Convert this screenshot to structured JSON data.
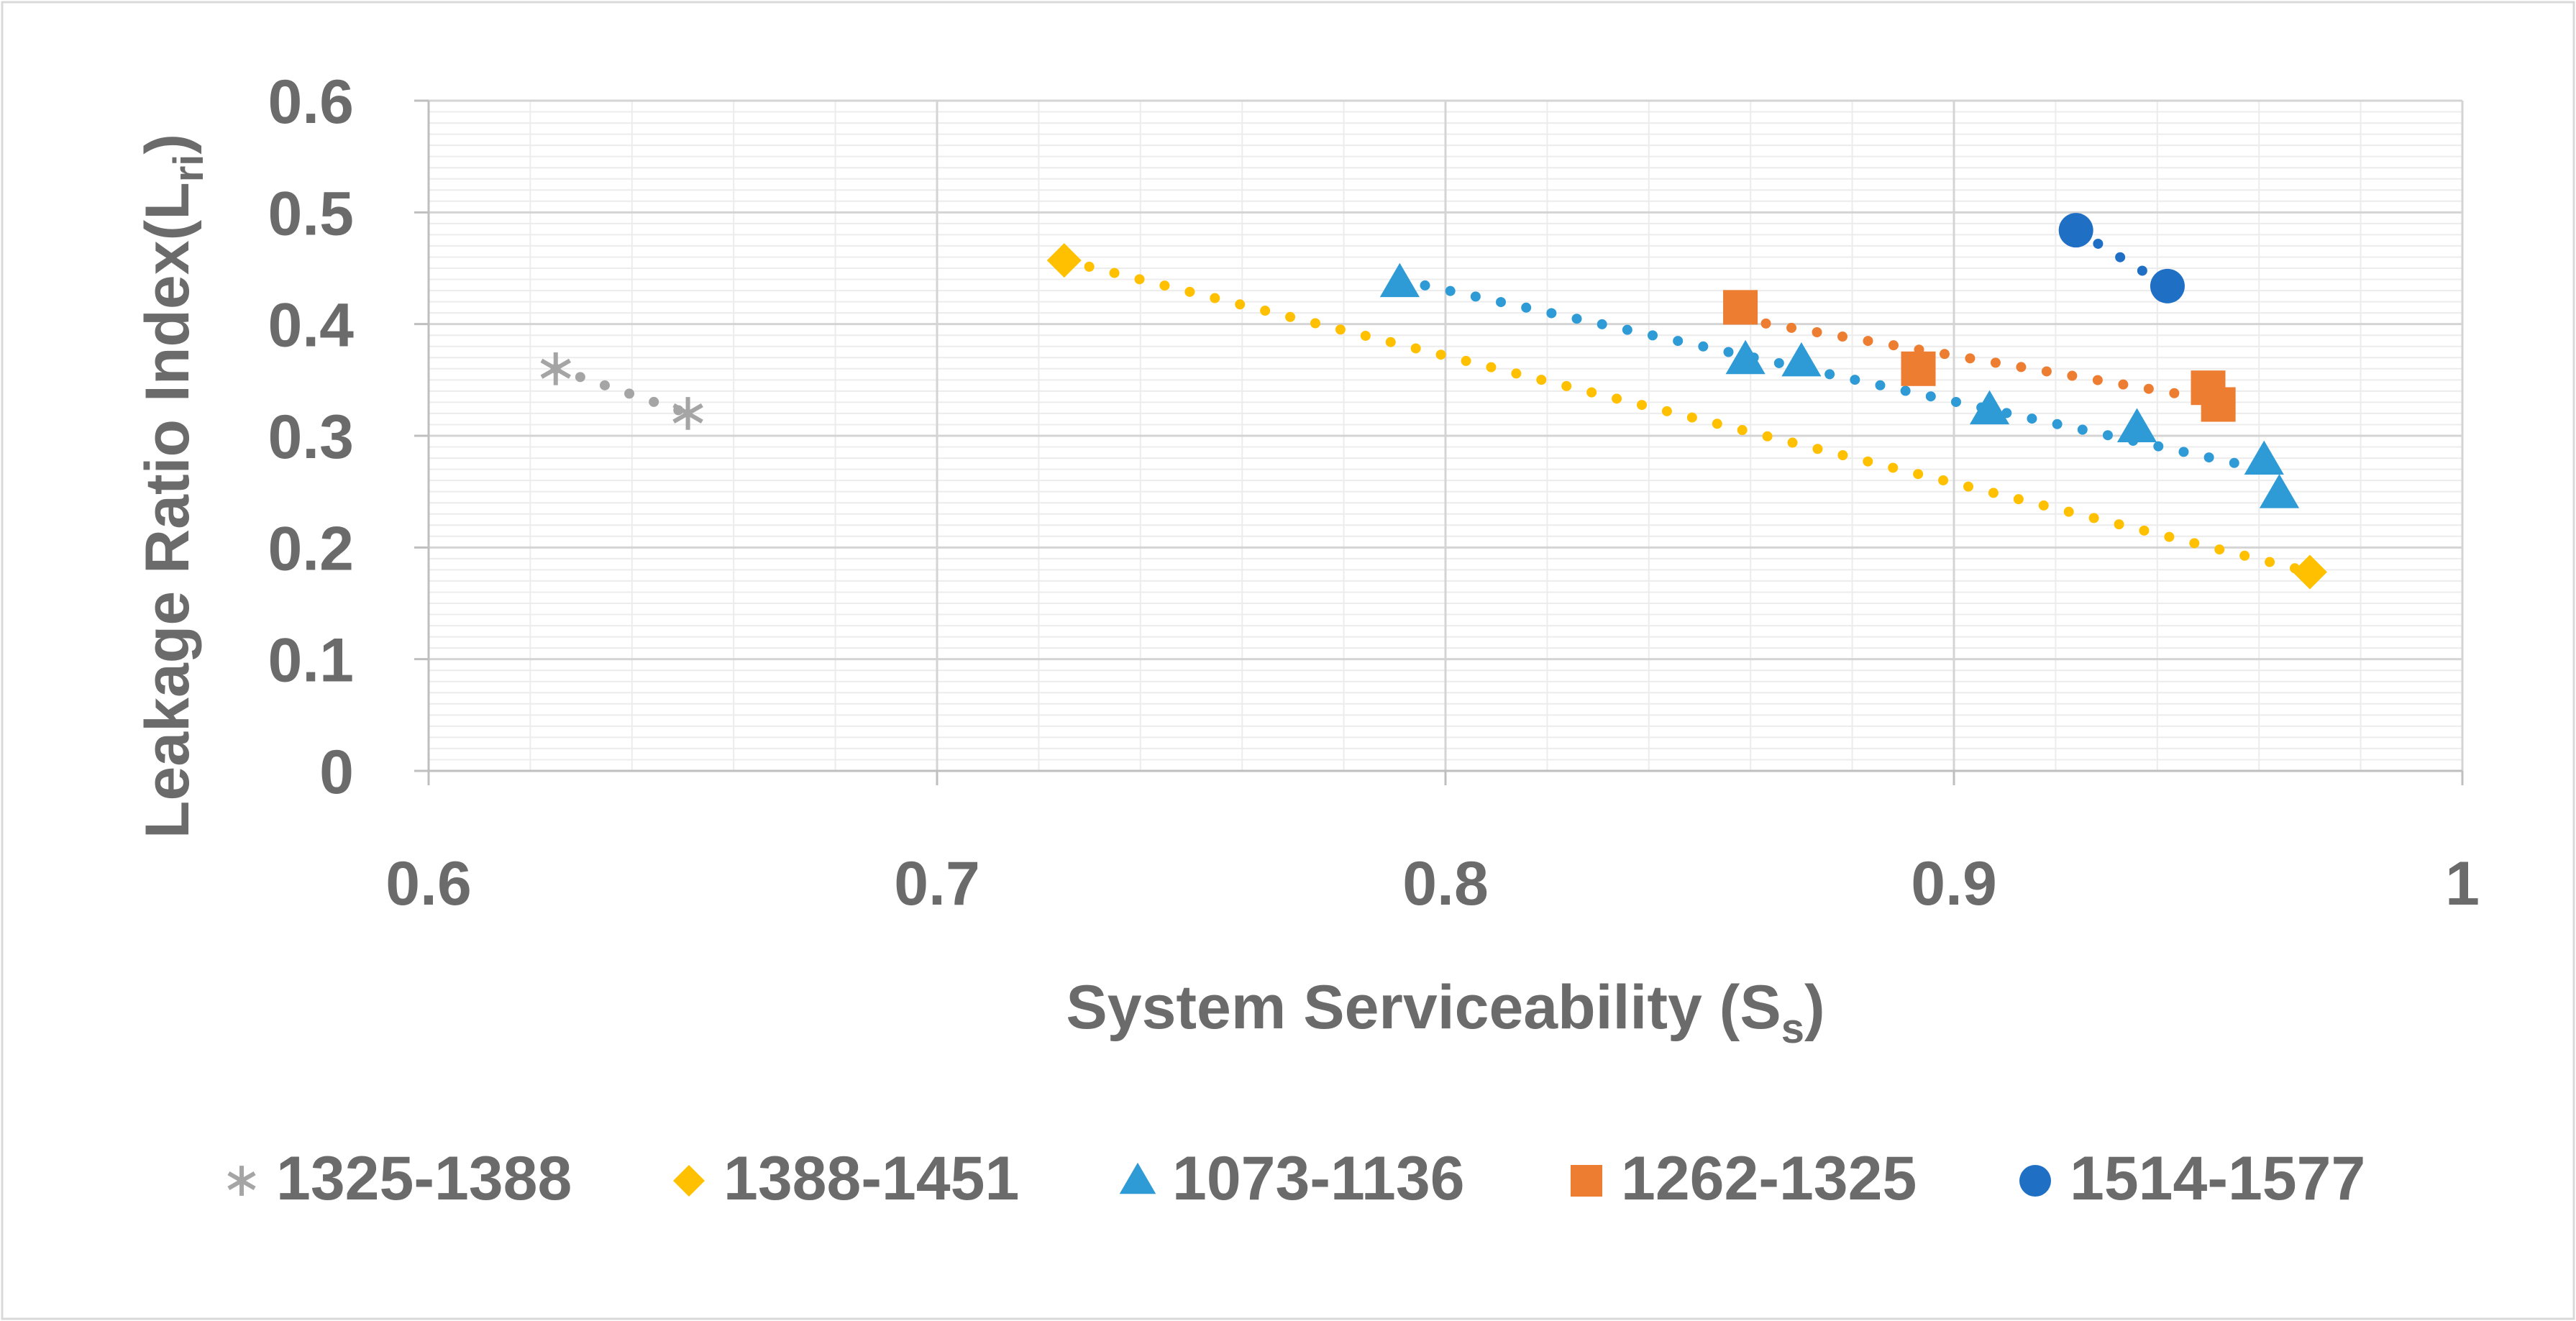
{
  "chart_data": {
    "type": "scatter",
    "title": "",
    "xlabel": "System Serviceability (S",
    "xlabel_sub": "s",
    "xlabel_suffix": ")",
    "ylabel": "Leakage Ratio Index(L",
    "ylabel_sub": "ri",
    "ylabel_suffix": ")",
    "xlim": [
      0.6,
      1.0
    ],
    "ylim": [
      0,
      0.6
    ],
    "xticks": [
      0.6,
      0.7,
      0.8,
      0.9,
      1.0
    ],
    "xtick_labels": [
      "0.6",
      "0.7",
      "0.8",
      "0.9",
      "1"
    ],
    "yticks": [
      0,
      0.1,
      0.2,
      0.3,
      0.4,
      0.5,
      0.6
    ],
    "ytick_labels": [
      "0",
      "0.1",
      "0.2",
      "0.3",
      "0.4",
      "0.5",
      "0.6"
    ],
    "grid": true,
    "legend_position": "bottom",
    "trendline": "linear, dotted",
    "series": [
      {
        "name": "1325-1388",
        "marker": "asterisk",
        "color": "#a5a5a5",
        "points": [
          [
            0.625,
            0.36
          ],
          [
            0.651,
            0.32
          ]
        ]
      },
      {
        "name": "1388-1451",
        "marker": "diamond",
        "color": "#ffc000",
        "points": [
          [
            0.725,
            0.457
          ],
          [
            0.97,
            0.178
          ]
        ]
      },
      {
        "name": "1073-1136",
        "marker": "triangle",
        "color": "#2e9bd6",
        "points": [
          [
            0.791,
            0.437
          ],
          [
            0.859,
            0.368
          ],
          [
            0.87,
            0.366
          ],
          [
            0.907,
            0.323
          ],
          [
            0.936,
            0.307
          ],
          [
            0.961,
            0.278
          ],
          [
            0.964,
            0.248
          ]
        ]
      },
      {
        "name": "1262-1325",
        "marker": "square",
        "color": "#ed7d31",
        "points": [
          [
            0.858,
            0.415
          ],
          [
            0.893,
            0.36
          ],
          [
            0.95,
            0.343
          ],
          [
            0.952,
            0.328
          ]
        ]
      },
      {
        "name": "1514-1577",
        "marker": "circle",
        "color": "#1f6fc5",
        "points": [
          [
            0.924,
            0.484
          ],
          [
            0.942,
            0.434
          ]
        ]
      }
    ]
  }
}
